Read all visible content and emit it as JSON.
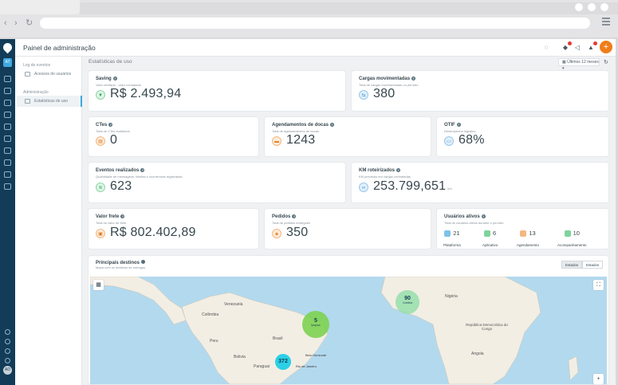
{
  "app": {
    "title": "Painel de administração",
    "rail_badge": "AT",
    "avatar": "AD"
  },
  "sidebar": {
    "section1": "Log de eventos",
    "item1": "Acessos de usuários",
    "section2": "Administração",
    "item2": "Estatísticas de uso"
  },
  "content": {
    "heading": "Estatísticas de uso",
    "period": "Últimos 12 meses ▾"
  },
  "cards": {
    "saving": {
      "label": "Saving",
      "sub": "Valor ofertado - valor contratado",
      "value": "R$ 2.493,94"
    },
    "cargas": {
      "label": "Cargas movimentadas",
      "sub": "Total de cargas movimentadas no período",
      "value": "380"
    },
    "ctes": {
      "label": "CTes",
      "sub": "Total de CTes auditados",
      "value": "0"
    },
    "docas": {
      "label": "Agendamentos de docas",
      "sub": "Total de agendamentos de docas",
      "value": "1243"
    },
    "otif": {
      "label": "OTIF",
      "sub": "Desempenho logístico",
      "value": "68%"
    },
    "eventos": {
      "label": "Eventos realizados",
      "sub": "Quantidade de mensagens, tarefas e ocorrências registradas",
      "value": "623"
    },
    "km": {
      "label": "KM roteirizados",
      "sub": "KM previstos em cargas contratadas",
      "value": "253.799,651",
      "unit": "km"
    },
    "frete": {
      "label": "Valor frete",
      "sub": "Total do valor de frete",
      "value": "R$ 802.402,89"
    },
    "pedidos": {
      "label": "Pedidos",
      "sub": "Total de pedidos entregues",
      "value": "350"
    },
    "usuarios": {
      "label": "Usuários ativos",
      "sub": "Total de usuários ativos durante o período",
      "stats": [
        {
          "value": "21",
          "label": "Plataforma"
        },
        {
          "value": "6",
          "label": "Aplicativo"
        },
        {
          "value": "13",
          "label": "Agendamento"
        },
        {
          "value": "10",
          "label": "Acompanhamento"
        }
      ]
    }
  },
  "map": {
    "label": "Principais destinos",
    "sub": "Mapa com os destinos de entregas",
    "seg_on": "Estados",
    "seg_off": "Estados",
    "clusters": [
      {
        "count": "90",
        "city": "Contiba"
      },
      {
        "count": "5",
        "city": "Ipojuca"
      },
      {
        "count": "372",
        "city": ""
      }
    ],
    "places": {
      "brasil": "Brasil",
      "peru": "Peru",
      "bolivia": "Bolivia",
      "paraguai": "Paraguai",
      "colombia": "Colômbia",
      "venezuela": "Venezuela",
      "nigeria": "Nigéria",
      "angola": "Angola",
      "rdc": "República Democrática do Congo",
      "sp": "Rio de Janeiro",
      "bh": "Belo Horizonte"
    }
  }
}
